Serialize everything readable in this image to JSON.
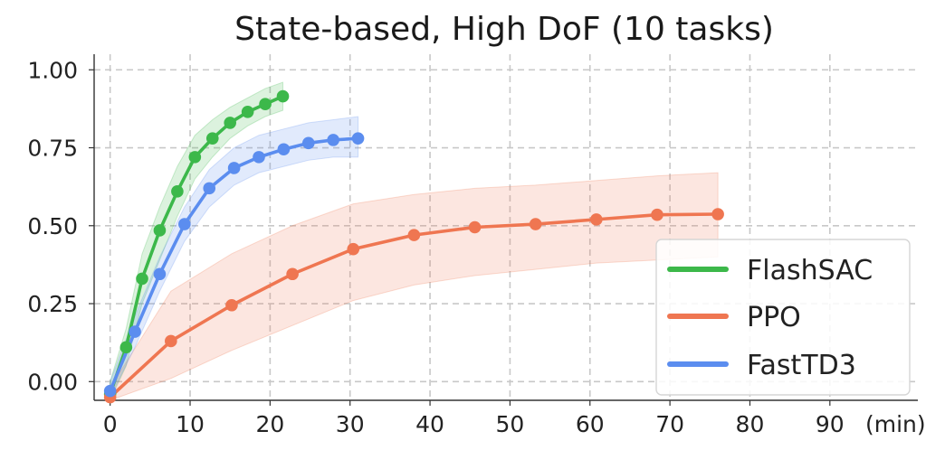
{
  "chart_data": {
    "type": "line",
    "title": "State-based, High DoF (10 tasks)",
    "xlabel": "",
    "ylabel": "",
    "x_unit_label": "(min)",
    "xlim": [
      -2,
      101
    ],
    "ylim": [
      -0.06,
      1.05
    ],
    "xticks": [
      0,
      10,
      20,
      30,
      40,
      50,
      60,
      70,
      80,
      90
    ],
    "yticks": [
      "0.00",
      "0.25",
      "0.50",
      "0.75",
      "1.00"
    ],
    "grid": true,
    "legend_position": "lower-right",
    "series": [
      {
        "name": "FlashSAC",
        "color": "#3cb84a",
        "x": [
          0,
          2,
          4,
          6.2,
          8.4,
          10.6,
          12.8,
          15.0,
          17.2,
          19.4,
          21.6
        ],
        "y": [
          -0.04,
          0.11,
          0.33,
          0.485,
          0.61,
          0.72,
          0.78,
          0.83,
          0.865,
          0.89,
          0.915
        ],
        "band_lower": [
          -0.06,
          0.05,
          0.25,
          0.39,
          0.53,
          0.65,
          0.72,
          0.78,
          0.82,
          0.85,
          0.87
        ],
        "band_upper": [
          0.0,
          0.17,
          0.41,
          0.56,
          0.69,
          0.79,
          0.84,
          0.88,
          0.91,
          0.94,
          0.96
        ]
      },
      {
        "name": "PPO",
        "color": "#ef7651",
        "x": [
          0,
          7.6,
          15.2,
          22.8,
          30.4,
          38.0,
          45.6,
          53.2,
          60.8,
          68.4,
          76.0
        ],
        "y": [
          -0.05,
          0.13,
          0.245,
          0.345,
          0.425,
          0.47,
          0.495,
          0.505,
          0.52,
          0.535,
          0.537
        ],
        "band_lower": [
          -0.06,
          0.01,
          0.1,
          0.18,
          0.26,
          0.31,
          0.34,
          0.36,
          0.38,
          0.39,
          0.4
        ],
        "band_upper": [
          -0.02,
          0.29,
          0.41,
          0.5,
          0.57,
          0.6,
          0.62,
          0.63,
          0.645,
          0.66,
          0.67
        ]
      },
      {
        "name": "FastTD3",
        "color": "#5b8def",
        "x": [
          0,
          3.1,
          6.2,
          9.3,
          12.4,
          15.5,
          18.6,
          21.7,
          24.8,
          27.9,
          31.0
        ],
        "y": [
          -0.03,
          0.16,
          0.345,
          0.505,
          0.62,
          0.685,
          0.72,
          0.745,
          0.765,
          0.775,
          0.78
        ],
        "band_lower": [
          -0.05,
          0.11,
          0.29,
          0.45,
          0.56,
          0.63,
          0.67,
          0.69,
          0.71,
          0.72,
          0.72
        ],
        "band_upper": [
          0.0,
          0.21,
          0.4,
          0.56,
          0.68,
          0.75,
          0.79,
          0.81,
          0.83,
          0.84,
          0.85
        ]
      }
    ]
  }
}
